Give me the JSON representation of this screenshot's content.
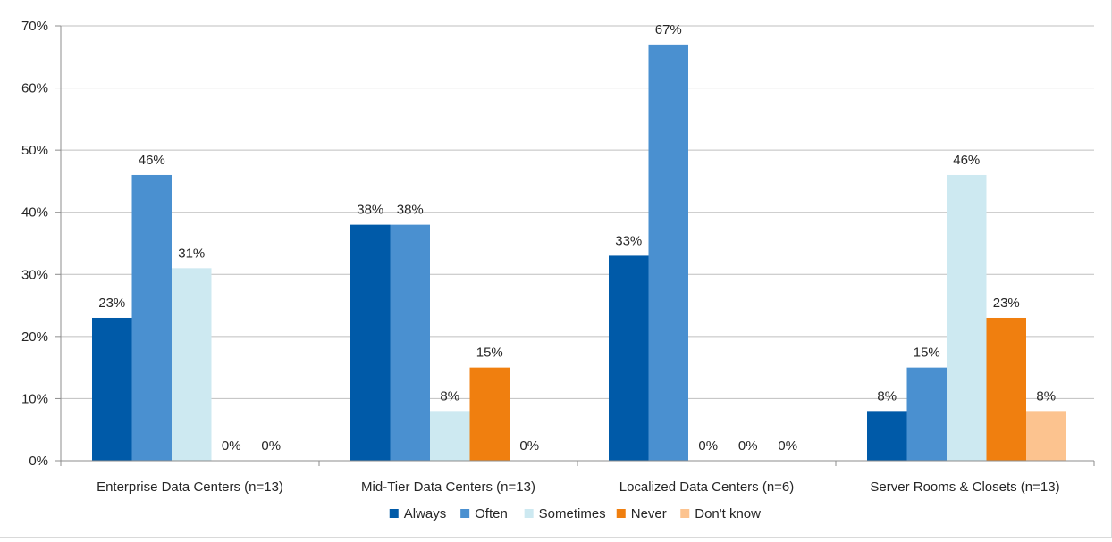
{
  "chart_data": {
    "type": "bar",
    "title": "",
    "xlabel": "",
    "ylabel": "",
    "ylim": [
      0,
      0.7
    ],
    "yticks": [
      0,
      0.1,
      0.2,
      0.3,
      0.4,
      0.5,
      0.6,
      0.7
    ],
    "ytick_labels": [
      "0%",
      "10%",
      "20%",
      "30%",
      "40%",
      "50%",
      "60%",
      "70%"
    ],
    "grid": true,
    "legend": "bottom",
    "categories": [
      "Enterprise Data Centers (n=13)",
      "Mid-Tier Data Centers (n=13)",
      "Localized Data Centers (n=6)",
      "Server Rooms & Closets (n=13)"
    ],
    "series": [
      {
        "name": "Always",
        "color": "#005aa8",
        "values": [
          0.23,
          0.38,
          0.33,
          0.08
        ],
        "labels": [
          "23%",
          "38%",
          "33%",
          "8%"
        ]
      },
      {
        "name": "Often",
        "color": "#4a90d0",
        "values": [
          0.46,
          0.38,
          0.67,
          0.15
        ],
        "labels": [
          "46%",
          "38%",
          "67%",
          "15%"
        ]
      },
      {
        "name": "Sometimes",
        "color": "#cde9f1",
        "values": [
          0.31,
          0.08,
          0.0,
          0.46
        ],
        "labels": [
          "31%",
          "8%",
          "0%",
          "46%"
        ]
      },
      {
        "name": "Never",
        "color": "#f07f0f",
        "values": [
          0.0,
          0.15,
          0.0,
          0.23
        ],
        "labels": [
          "0%",
          "15%",
          "0%",
          "23%"
        ]
      },
      {
        "name": "Don't know",
        "color": "#fcc38f",
        "values": [
          0.0,
          0.0,
          0.0,
          0.08
        ],
        "labels": [
          "0%",
          "0%",
          "0%",
          "8%"
        ]
      }
    ]
  }
}
